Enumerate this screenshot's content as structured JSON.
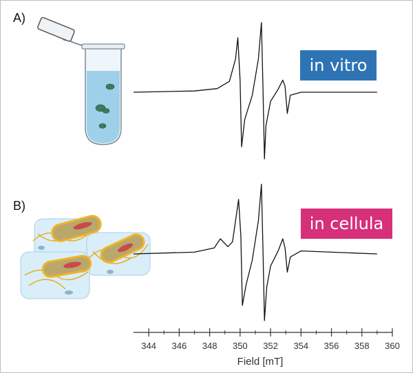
{
  "panels": {
    "a_label": "A)",
    "b_label": "B)"
  },
  "badges": {
    "in_vitro": {
      "text": "in vitro",
      "color": "#2e74b5"
    },
    "in_cellula": {
      "text": "in cellula",
      "color": "#d6307a"
    }
  },
  "chart_data": {
    "type": "line",
    "xlabel": "Field [mT]",
    "xlim": [
      343,
      360
    ],
    "xticks": [
      344,
      346,
      348,
      350,
      352,
      354,
      356,
      358,
      360
    ],
    "grid": false,
    "series": [
      {
        "x": [
          343.0,
          347.0,
          348.5,
          349.3,
          349.7,
          349.85,
          350.0,
          350.1,
          350.3,
          350.8,
          351.2,
          351.4,
          351.5,
          351.6,
          351.7,
          352.0,
          352.5,
          352.8,
          352.95,
          353.1,
          353.3,
          354.0,
          356.0,
          359.0
        ],
        "y": [
          0.0,
          0.02,
          0.06,
          0.18,
          0.55,
          0.9,
          0.2,
          -0.9,
          -0.45,
          -0.05,
          0.55,
          1.15,
          0.1,
          -1.1,
          -0.55,
          -0.15,
          0.05,
          0.2,
          0.1,
          -0.35,
          -0.05,
          0.0,
          0.0,
          0.0
        ]
      },
      {
        "x": [
          343.0,
          347.0,
          348.3,
          348.7,
          349.2,
          349.5,
          349.8,
          349.9,
          350.05,
          350.15,
          350.4,
          350.8,
          351.2,
          351.4,
          351.5,
          351.6,
          351.75,
          352.0,
          352.5,
          352.8,
          352.95,
          353.1,
          353.3,
          354.0,
          356.0,
          359.0
        ],
        "y": [
          0.0,
          0.03,
          0.1,
          0.25,
          0.12,
          0.2,
          0.72,
          0.9,
          0.3,
          -0.85,
          -0.5,
          -0.1,
          0.55,
          1.15,
          0.1,
          -1.1,
          -0.55,
          -0.2,
          0.05,
          0.25,
          0.1,
          -0.3,
          -0.05,
          0.05,
          0.03,
          0.0
        ]
      }
    ]
  }
}
